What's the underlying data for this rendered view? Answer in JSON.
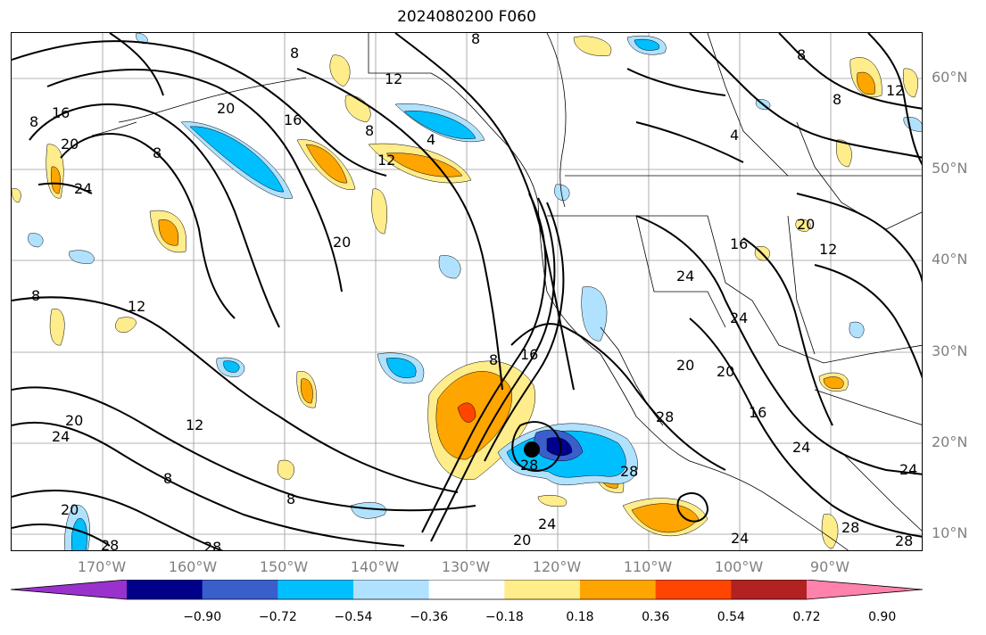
{
  "title": "2024080200 F060",
  "map": {
    "lat_labels": [
      "60°N",
      "50°N",
      "40°N",
      "30°N",
      "20°N",
      "10°N"
    ],
    "lon_labels": [
      "170°W",
      "160°W",
      "150°W",
      "140°W",
      "130°W",
      "120°W",
      "110°W",
      "100°W",
      "90°W"
    ],
    "contour_labels": [
      "8",
      "12",
      "16",
      "20",
      "24",
      "28",
      "4"
    ]
  },
  "colorbar": {
    "colors": [
      "#9932cc",
      "#00008b",
      "#3a5fcd",
      "#00bfff",
      "#b0e2ff",
      "#ffffff",
      "#ffec8b",
      "#ffa500",
      "#ff4500",
      "#b22222",
      "#ff82ab"
    ],
    "ticks": [
      "−0.90",
      "−0.72",
      "−0.54",
      "−0.36",
      "−0.18",
      "0.18",
      "0.36",
      "0.54",
      "0.72",
      "0.90"
    ]
  }
}
